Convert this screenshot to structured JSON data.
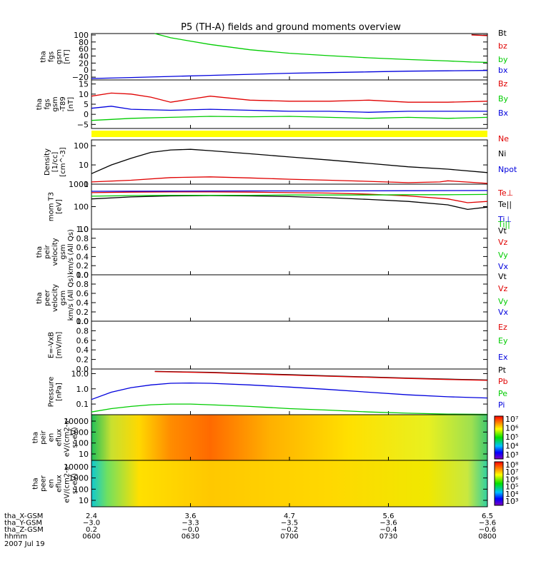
{
  "title": "P5 (TH-A) fields and ground moments overview",
  "chart_data": {
    "type": "line",
    "title": "P5 (TH-A) fields and ground moments overview",
    "date": "2007 Jul 19",
    "x_time_ticks": [
      "0600",
      "0630",
      "0700",
      "0730",
      "0800"
    ],
    "ephemeris": [
      {
        "name": "tha_X-GSM",
        "values": [
          "2.4",
          "3.6",
          "4.7",
          "5.6",
          "6.5"
        ]
      },
      {
        "name": "tha_Y-GSM",
        "values": [
          "-3.0",
          "-3.3",
          "-3.5",
          "-3.6",
          "-3.6"
        ]
      },
      {
        "name": "tha_Z-GSM",
        "values": [
          "0.2",
          "-0.0",
          "-0.2",
          "-0.4",
          "-0.6"
        ]
      },
      {
        "name": "hhmm",
        "values": [
          "0600",
          "0630",
          "0700",
          "0730",
          "0800"
        ]
      }
    ],
    "panels": [
      {
        "id": "fgs",
        "ylabel": [
          "tha",
          "fgs",
          "gsm",
          "[nT]"
        ],
        "scale": "linear",
        "ylim": [
          -28,
          104
        ],
        "yticks": [
          "100",
          "80",
          "60",
          "40",
          "20",
          "0",
          "-20"
        ],
        "series": [
          {
            "name": "Bt",
            "color": "#000000",
            "x": [
              0.96,
              0.98,
              1.0
            ],
            "y": [
              101,
              100,
              99
            ]
          },
          {
            "name": "bz",
            "color": "#e00000",
            "x": [
              0.96,
              0.98,
              1.0
            ],
            "y": [
              100,
              99,
              98
            ]
          },
          {
            "name": "by",
            "color": "#00cc00",
            "x": [
              0.16,
              0.2,
              0.3,
              0.4,
              0.5,
              0.6,
              0.7,
              0.8,
              0.9,
              0.96,
              1.0
            ],
            "y": [
              104,
              92,
              73,
              58,
              48,
              41,
              35,
              30,
              26,
              23,
              22
            ]
          },
          {
            "name": "bx",
            "color": "#0000dd",
            "x": [
              0,
              0.1,
              0.2,
              0.3,
              0.4,
              0.5,
              0.6,
              0.7,
              0.8,
              0.9,
              1.0
            ],
            "y": [
              -24,
              -21,
              -18,
              -15,
              -12,
              -9,
              -7,
              -5,
              -3,
              -2,
              -1
            ]
          }
        ]
      },
      {
        "id": "fgs-t89",
        "ylabel": [
          "tha",
          "fgs",
          "gsm",
          "-T89",
          "[nT]"
        ],
        "scale": "linear",
        "ylim": [
          -7,
          17
        ],
        "yticks": [
          "15",
          "10",
          "5",
          "0",
          "-5"
        ],
        "series": [
          {
            "name": "Bz",
            "color": "#e00000",
            "x": [
              0,
              0.05,
              0.1,
              0.15,
              0.2,
              0.25,
              0.3,
              0.4,
              0.5,
              0.6,
              0.7,
              0.8,
              0.9,
              1.0
            ],
            "y": [
              9,
              10.5,
              10,
              8.5,
              6,
              7.5,
              9,
              7,
              6.5,
              6.5,
              7,
              6,
              6,
              6.5
            ]
          },
          {
            "name": "By",
            "color": "#00cc00",
            "x": [
              0,
              0.05,
              0.1,
              0.2,
              0.3,
              0.4,
              0.5,
              0.6,
              0.7,
              0.8,
              0.9,
              1.0
            ],
            "y": [
              -3,
              -2.5,
              -2,
              -1.5,
              -1,
              -1.2,
              -1,
              -1.5,
              -2,
              -1.5,
              -2,
              -1.5
            ]
          },
          {
            "name": "Bx",
            "color": "#0000dd",
            "x": [
              0,
              0.05,
              0.1,
              0.2,
              0.3,
              0.4,
              0.5,
              0.6,
              0.7,
              0.8,
              0.9,
              1.0
            ],
            "y": [
              3,
              4,
              2.5,
              2,
              2.5,
              2,
              1.5,
              1.5,
              1,
              1.5,
              1.5,
              1.5
            ]
          }
        ]
      },
      {
        "id": "density",
        "ylabel": [
          "Density",
          "[1/cc]",
          "[cm^-3]"
        ],
        "scale": "log",
        "ylim": [
          1,
          200
        ],
        "yticks": [
          "100",
          "10",
          "1"
        ],
        "series": [
          {
            "name": "Ne",
            "color": "#e00000",
            "x": [
              0,
              0.1,
              0.2,
              0.3,
              0.4,
              0.5,
              0.6,
              0.7,
              0.8,
              0.88,
              0.9,
              1.0
            ],
            "y": [
              1.3,
              1.6,
              2.2,
              2.4,
              2.1,
              1.8,
              1.6,
              1.4,
              1.2,
              1.3,
              1.5,
              1.1
            ]
          },
          {
            "name": "Ni",
            "color": "#000000",
            "x": [
              0,
              0.05,
              0.1,
              0.15,
              0.2,
              0.25,
              0.3,
              0.4,
              0.5,
              0.6,
              0.7,
              0.8,
              0.9,
              1.0
            ],
            "y": [
              3.5,
              10,
              22,
              45,
              60,
              65,
              55,
              38,
              26,
              18,
              12,
              8,
              6,
              4
            ]
          },
          {
            "name": "Npot",
            "color": "#0000dd",
            "x": [],
            "y": []
          }
        ]
      },
      {
        "id": "temperature",
        "ylabel": [
          "mom T3",
          "[eV]"
        ],
        "scale": "log",
        "ylim": [
          10,
          1000
        ],
        "yticks": [
          "1000",
          "100",
          "10"
        ],
        "series": [
          {
            "name": "Te⊥",
            "color": "#e00000",
            "x": [
              0,
              0.1,
              0.2,
              0.3,
              0.4,
              0.5,
              0.6,
              0.7,
              0.8,
              0.9,
              0.95,
              1.0
            ],
            "y": [
              420,
              440,
              450,
              450,
              440,
              420,
              400,
              360,
              300,
              220,
              150,
              170
            ]
          },
          {
            "name": "Te||",
            "color": "#000000",
            "x": [
              0,
              0.1,
              0.2,
              0.3,
              0.4,
              0.5,
              0.6,
              0.7,
              0.8,
              0.9,
              0.95,
              1.0
            ],
            "y": [
              220,
              270,
              300,
              310,
              300,
              280,
              250,
              210,
              170,
              120,
              75,
              95
            ]
          },
          {
            "name": "Ti⊥",
            "color": "#0000dd",
            "x": [
              0,
              0.2,
              0.4,
              0.6,
              0.8,
              1.0
            ],
            "y": [
              480,
              490,
              500,
              500,
              510,
              520
            ]
          },
          {
            "name": "Ti||",
            "color": "#00cc00",
            "x": [
              0,
              0.1,
              0.2,
              0.3,
              0.4,
              0.5,
              0.6,
              0.7,
              0.8,
              0.9,
              1.0
            ],
            "y": [
              290,
              310,
              320,
              320,
              320,
              330,
              330,
              330,
              340,
              340,
              350
            ]
          }
        ]
      },
      {
        "id": "peir-velocity",
        "ylabel": [
          "tha",
          "peir",
          "velocity",
          "gsm",
          "km/s (All Qs)"
        ],
        "scale": "linear",
        "ylim": [
          0,
          1
        ],
        "yticks": [
          "1.0",
          "0.8",
          "0.6",
          "0.4",
          "0.2",
          "0.0"
        ],
        "series": [
          {
            "name": "Vt",
            "color": "#000000",
            "x": [],
            "y": []
          },
          {
            "name": "Vz",
            "color": "#e00000",
            "x": [],
            "y": []
          },
          {
            "name": "Vy",
            "color": "#00cc00",
            "x": [],
            "y": []
          },
          {
            "name": "Vx",
            "color": "#0000dd",
            "x": [],
            "y": []
          }
        ]
      },
      {
        "id": "peer-velocity",
        "ylabel": [
          "tha",
          "peer",
          "velocity",
          "gsm",
          "km/s (All Qs)"
        ],
        "scale": "linear",
        "ylim": [
          0,
          1
        ],
        "yticks": [
          "1.0",
          "0.8",
          "0.6",
          "0.4",
          "0.2",
          "0.0"
        ],
        "series": [
          {
            "name": "Vt",
            "color": "#000000",
            "x": [],
            "y": []
          },
          {
            "name": "Vz",
            "color": "#e00000",
            "x": [],
            "y": []
          },
          {
            "name": "Vy",
            "color": "#00cc00",
            "x": [],
            "y": []
          },
          {
            "name": "Vx",
            "color": "#0000dd",
            "x": [],
            "y": []
          }
        ]
      },
      {
        "id": "efield",
        "ylabel": [
          "E=-VxB",
          "[mV/m]"
        ],
        "scale": "linear",
        "ylim": [
          0,
          1
        ],
        "yticks": [
          "1.0",
          "0.8",
          "0.6",
          "0.4",
          "0.2",
          "0.0"
        ],
        "series": [
          {
            "name": "Ez",
            "color": "#e00000",
            "x": [],
            "y": []
          },
          {
            "name": "Ey",
            "color": "#00cc00",
            "x": [],
            "y": []
          },
          {
            "name": "Ex",
            "color": "#0000dd",
            "x": [],
            "y": []
          }
        ]
      },
      {
        "id": "pressure",
        "ylabel": [
          "Pressure",
          "[nPa]"
        ],
        "scale": "log",
        "ylim": [
          0.02,
          20
        ],
        "yticks": [
          "10.0",
          "1.0",
          "0.1"
        ],
        "series": [
          {
            "name": "Pt",
            "color": "#000000",
            "x": [
              0.16,
              0.3,
              0.4,
              0.5,
              0.6,
              0.7,
              0.8,
              0.9,
              1.0
            ],
            "y": [
              14,
              12,
              10,
              8.5,
              7,
              6,
              5,
              4.3,
              3.8
            ]
          },
          {
            "name": "Pb",
            "color": "#e00000",
            "x": [
              0.16,
              0.3,
              0.4,
              0.5,
              0.6,
              0.7,
              0.8,
              0.9,
              1.0
            ],
            "y": [
              13.5,
              11.5,
              9.5,
              8,
              6.7,
              5.7,
              4.8,
              4.1,
              3.6
            ]
          },
          {
            "name": "Pe",
            "color": "#00cc00",
            "x": [
              0,
              0.05,
              0.1,
              0.15,
              0.2,
              0.25,
              0.3,
              0.4,
              0.5,
              0.6,
              0.7,
              0.8,
              0.9,
              1.0
            ],
            "y": [
              0.03,
              0.05,
              0.07,
              0.09,
              0.1,
              0.1,
              0.09,
              0.07,
              0.05,
              0.04,
              0.03,
              0.025,
              0.022,
              0.021
            ]
          },
          {
            "name": "Pi",
            "color": "#0000dd",
            "x": [
              0,
              0.05,
              0.1,
              0.15,
              0.2,
              0.25,
              0.3,
              0.4,
              0.5,
              0.6,
              0.7,
              0.8,
              0.9,
              1.0
            ],
            "y": [
              0.2,
              0.6,
              1.2,
              1.8,
              2.3,
              2.4,
              2.3,
              1.8,
              1.3,
              0.9,
              0.6,
              0.4,
              0.3,
              0.25
            ]
          }
        ]
      },
      {
        "id": "peir-spectrogram",
        "type": "heatmap",
        "ylabel": [
          "tha",
          "peir",
          "en",
          "eflux",
          "eV/(cm2-s-",
          "sr-eV)"
        ],
        "scale": "log",
        "yticks": [
          "10000",
          "1000",
          "100",
          "10"
        ],
        "colorbar_ticks": [
          "10^7",
          "10^6",
          "10^5",
          "10^4",
          "10^3"
        ]
      },
      {
        "id": "peer-spectrogram",
        "type": "heatmap",
        "ylabel": [
          "tha",
          "peer",
          "en",
          "eflux",
          "eV/(cm2-s-",
          "sr-eV)"
        ],
        "scale": "log",
        "yticks": [
          "10000",
          "1000",
          "100",
          "10"
        ],
        "colorbar_ticks": [
          "10^8",
          "10^7",
          "10^6",
          "10^5",
          "10^4",
          "10^3"
        ]
      }
    ]
  }
}
